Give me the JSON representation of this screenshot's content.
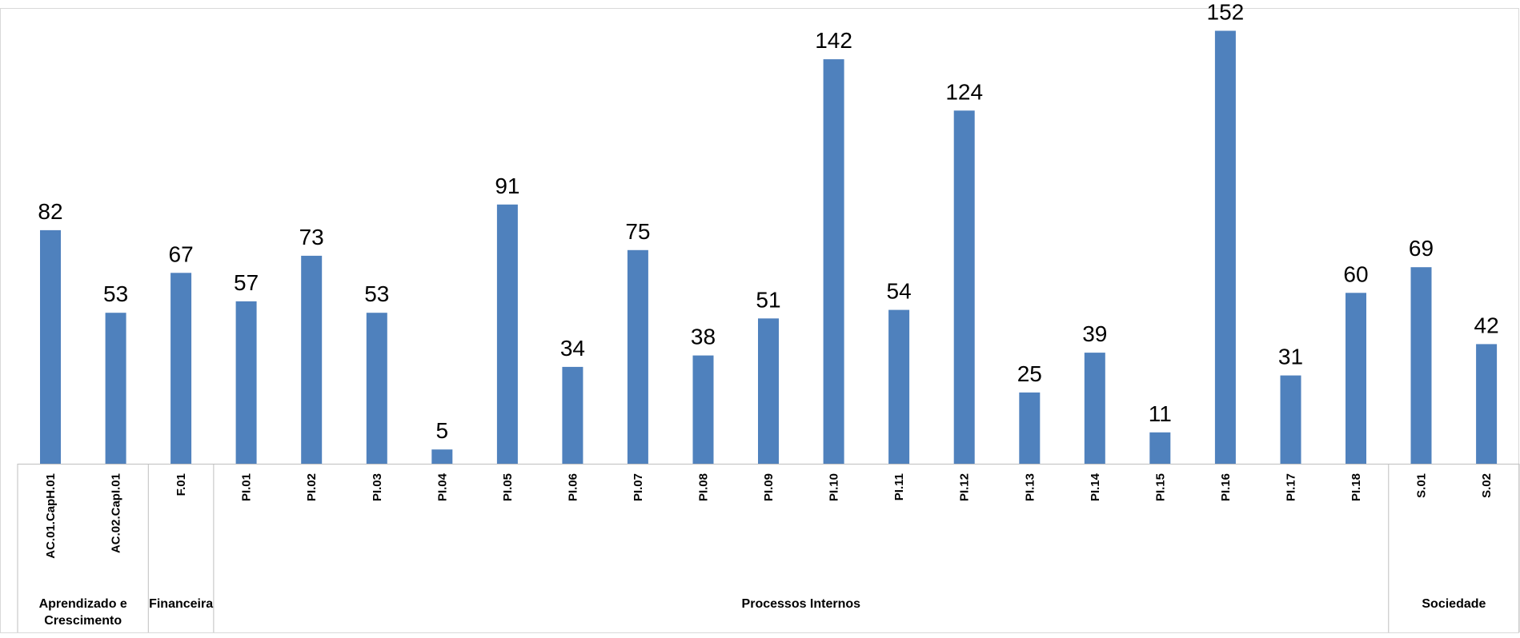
{
  "chart_data": {
    "type": "bar",
    "title": "",
    "xlabel": "",
    "ylabel": "",
    "ylim": [
      0,
      160
    ],
    "grid": false,
    "legend": "none",
    "bar_color": "#4F81BD",
    "categories": [
      "AC.01.CapH.01",
      "AC.02.CapI.01",
      "F.01",
      "PI.01",
      "PI.02",
      "PI.03",
      "PI.04",
      "PI.05",
      "PI.06",
      "PI.07",
      "PI.08",
      "PI.09",
      "PI.10",
      "PI.11",
      "PI.12",
      "PI.13",
      "PI.14",
      "PI.15",
      "PI.16",
      "PI.17",
      "PI.18",
      "S.01",
      "S.02"
    ],
    "values": [
      82,
      53,
      67,
      57,
      73,
      53,
      5,
      91,
      34,
      75,
      38,
      51,
      142,
      54,
      124,
      25,
      39,
      11,
      152,
      31,
      60,
      69,
      42
    ],
    "groups": [
      {
        "lines": [
          "Aprendizado e",
          "Crescimento"
        ],
        "start": 0,
        "count": 2
      },
      {
        "lines": [
          "Financeira"
        ],
        "start": 2,
        "count": 1
      },
      {
        "lines": [
          "Processos Internos"
        ],
        "start": 3,
        "count": 18
      },
      {
        "lines": [
          "Sociedade"
        ],
        "start": 21,
        "count": 2
      }
    ]
  }
}
